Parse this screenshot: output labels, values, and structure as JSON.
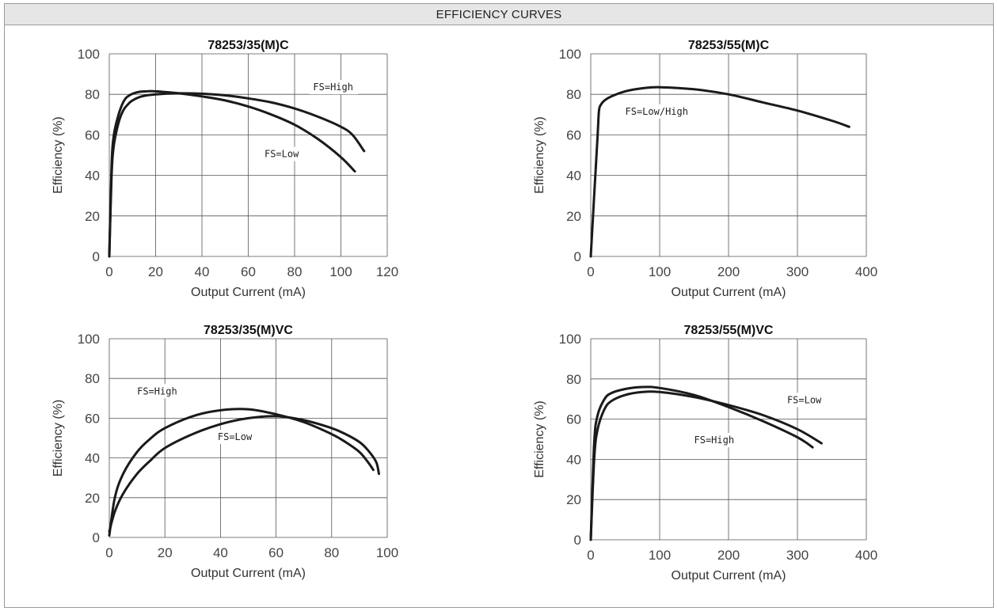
{
  "header": {
    "title": "EFFICIENCY CURVES"
  },
  "chart_data": [
    {
      "type": "line",
      "title": "78253/35(M)C",
      "xlabel": "Output Current (mA)",
      "ylabel": "Efficiency (%)",
      "xlim": [
        0,
        120
      ],
      "ylim": [
        0,
        100
      ],
      "xticks": [
        0,
        20,
        40,
        60,
        80,
        100,
        120
      ],
      "yticks": [
        0,
        20,
        40,
        60,
        80,
        100
      ],
      "grid": true,
      "series": [
        {
          "name": "FS=High",
          "color": "#1a1a1a",
          "x": [
            0,
            1,
            2,
            4,
            6,
            8,
            10,
            14,
            20,
            30,
            40,
            50,
            60,
            70,
            80,
            90,
            100,
            105,
            110
          ],
          "y": [
            0,
            40,
            55,
            66,
            72,
            75,
            77,
            79,
            80,
            80.5,
            80.3,
            79.5,
            78,
            76,
            73,
            69,
            64,
            60,
            52
          ]
        },
        {
          "name": "FS=Low",
          "color": "#1a1a1a",
          "x": [
            0,
            1,
            2,
            4,
            6,
            8,
            12,
            16,
            20,
            30,
            40,
            50,
            60,
            70,
            80,
            90,
            100,
            106
          ],
          "y": [
            0,
            45,
            60,
            70,
            76,
            79,
            81,
            81.5,
            81.5,
            80.5,
            79,
            77,
            74,
            70,
            65,
            58,
            49,
            42
          ]
        }
      ],
      "annotations": [
        {
          "text": "FS=High",
          "x": 88,
          "y": 82
        },
        {
          "text": "FS=Low",
          "x": 67,
          "y": 49
        }
      ]
    },
    {
      "type": "line",
      "title": "78253/55(M)C",
      "xlabel": "Output Current (mA)",
      "ylabel": "Efficiency (%)",
      "xlim": [
        0,
        400
      ],
      "ylim": [
        0,
        100
      ],
      "xticks": [
        0,
        100,
        200,
        300,
        400
      ],
      "yticks": [
        0,
        20,
        40,
        60,
        80,
        100
      ],
      "grid": true,
      "series": [
        {
          "name": "FS=Low/High",
          "color": "#1a1a1a",
          "x": [
            0,
            5,
            10,
            12,
            15,
            20,
            30,
            50,
            75,
            100,
            150,
            200,
            250,
            300,
            350,
            375
          ],
          "y": [
            0,
            30,
            60,
            72,
            75,
            77,
            79,
            81.5,
            83,
            83.5,
            82.5,
            80,
            76,
            72,
            67,
            64
          ]
        }
      ],
      "annotations": [
        {
          "text": "FS=Low/High",
          "x": 50,
          "y": 70
        }
      ]
    },
    {
      "type": "line",
      "title": "78253/35(M)VC",
      "xlabel": "Output Current (mA)",
      "ylabel": "Efficiency (%)",
      "xlim": [
        0,
        100
      ],
      "ylim": [
        0,
        100
      ],
      "xticks": [
        0,
        20,
        40,
        60,
        80,
        100
      ],
      "yticks": [
        0,
        20,
        40,
        60,
        80,
        100
      ],
      "grid": true,
      "series": [
        {
          "name": "FS=High",
          "color": "#1a1a1a",
          "x": [
            0,
            2,
            5,
            10,
            15,
            20,
            30,
            40,
            50,
            60,
            70,
            80,
            85,
            90,
            93,
            95
          ],
          "y": [
            1,
            20,
            32,
            43,
            50,
            55,
            61,
            64,
            64.5,
            62,
            58,
            52,
            48,
            43,
            38,
            34
          ]
        },
        {
          "name": "FS=Low",
          "color": "#1a1a1a",
          "x": [
            0,
            2,
            5,
            10,
            15,
            20,
            30,
            40,
            50,
            60,
            70,
            80,
            85,
            90,
            93,
            96,
            97
          ],
          "y": [
            3,
            13,
            22,
            32,
            39,
            45,
            52,
            57,
            60,
            61,
            59,
            55,
            52,
            48,
            44,
            38,
            32
          ]
        }
      ],
      "annotations": [
        {
          "text": "FS=High",
          "x": 10,
          "y": 72
        },
        {
          "text": "FS=Low",
          "x": 39,
          "y": 49
        }
      ]
    },
    {
      "type": "line",
      "title": "78253/55(M)VC",
      "xlabel": "Output Current (mA)",
      "ylabel": "Efficiency (%)",
      "xlim": [
        0,
        400
      ],
      "ylim": [
        0,
        100
      ],
      "xticks": [
        0,
        100,
        200,
        300,
        400
      ],
      "yticks": [
        0,
        20,
        40,
        60,
        80,
        100
      ],
      "grid": true,
      "series": [
        {
          "name": "FS=Low",
          "color": "#1a1a1a",
          "x": [
            0,
            5,
            10,
            20,
            30,
            50,
            75,
            100,
            150,
            200,
            250,
            300,
            335
          ],
          "y": [
            0,
            40,
            55,
            65,
            69,
            72,
            73.5,
            73.5,
            71,
            67,
            62,
            55,
            48
          ]
        },
        {
          "name": "FS=High",
          "color": "#1a1a1a",
          "x": [
            0,
            5,
            10,
            20,
            30,
            50,
            75,
            100,
            150,
            200,
            250,
            300,
            322
          ],
          "y": [
            0,
            48,
            62,
            70,
            73,
            75,
            76,
            75.5,
            72,
            66,
            59,
            51,
            46
          ]
        }
      ],
      "annotations": [
        {
          "text": "FS=Low",
          "x": 285,
          "y": 68
        },
        {
          "text": "FS=High",
          "x": 150,
          "y": 48
        }
      ]
    }
  ]
}
